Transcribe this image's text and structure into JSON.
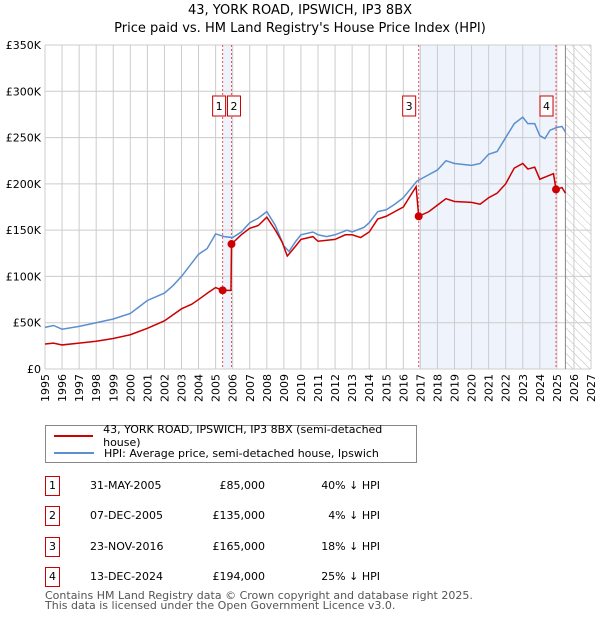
{
  "title": "43, YORK ROAD, IPSWICH, IP3 8BX",
  "subtitle": "Price paid vs. HM Land Registry's House Price Index (HPI)",
  "chart_data": {
    "type": "line",
    "title": "43, YORK ROAD, IPSWICH, IP3 8BX — Price paid vs. HM Land Registry's House Price Index (HPI)",
    "xlim": [
      1995,
      2027
    ],
    "ylim": [
      0,
      350000
    ],
    "yticks": [
      {
        "v": 0,
        "label": "£0"
      },
      {
        "v": 50000,
        "label": "£50K"
      },
      {
        "v": 100000,
        "label": "£100K"
      },
      {
        "v": 150000,
        "label": "£150K"
      },
      {
        "v": 200000,
        "label": "£200K"
      },
      {
        "v": 250000,
        "label": "£250K"
      },
      {
        "v": 300000,
        "label": "£300K"
      },
      {
        "v": 350000,
        "label": "£350K"
      }
    ],
    "xticks": [
      "1995",
      "1996",
      "1997",
      "1998",
      "1999",
      "2000",
      "2001",
      "2002",
      "2003",
      "2004",
      "2005",
      "2006",
      "2007",
      "2008",
      "2009",
      "2010",
      "2011",
      "2012",
      "2013",
      "2014",
      "2015",
      "2016",
      "2017",
      "2018",
      "2019",
      "2020",
      "2021",
      "2022",
      "2023",
      "2024",
      "2025",
      "2026",
      "2027"
    ],
    "series": [
      {
        "name": "43, YORK ROAD, IPSWICH, IP3 8BX (semi-detached house)",
        "color": "#cc0000",
        "points": [
          [
            1995,
            27000
          ],
          [
            1995.5,
            28000
          ],
          [
            1996,
            26000
          ],
          [
            1997,
            28000
          ],
          [
            1998,
            30000
          ],
          [
            1999,
            33000
          ],
          [
            2000,
            37000
          ],
          [
            2001,
            44000
          ],
          [
            2002,
            52000
          ],
          [
            2003,
            65000
          ],
          [
            2003.6,
            70000
          ],
          [
            2004,
            75000
          ],
          [
            2004.6,
            83000
          ],
          [
            2005,
            88000
          ],
          [
            2005.41,
            85000
          ],
          [
            2005.9,
            85000
          ],
          [
            2005.93,
            135000
          ],
          [
            2006.5,
            145000
          ],
          [
            2007,
            152000
          ],
          [
            2007.5,
            155000
          ],
          [
            2008,
            164000
          ],
          [
            2008.5,
            150000
          ],
          [
            2008.9,
            137000
          ],
          [
            2009.2,
            122000
          ],
          [
            2009.7,
            133000
          ],
          [
            2010,
            140000
          ],
          [
            2010.7,
            143000
          ],
          [
            2011,
            138000
          ],
          [
            2012,
            140000
          ],
          [
            2012.6,
            145000
          ],
          [
            2013,
            145000
          ],
          [
            2013.5,
            142000
          ],
          [
            2014,
            148000
          ],
          [
            2014.5,
            162000
          ],
          [
            2015,
            165000
          ],
          [
            2015.5,
            170000
          ],
          [
            2016,
            175000
          ],
          [
            2016.75,
            197000
          ],
          [
            2016.9,
            165000
          ],
          [
            2017.5,
            170000
          ],
          [
            2018,
            177000
          ],
          [
            2018.5,
            184000
          ],
          [
            2019,
            181000
          ],
          [
            2020,
            180000
          ],
          [
            2020.5,
            178000
          ],
          [
            2021,
            185000
          ],
          [
            2021.5,
            190000
          ],
          [
            2022,
            200000
          ],
          [
            2022.5,
            217000
          ],
          [
            2023,
            222000
          ],
          [
            2023.3,
            216000
          ],
          [
            2023.7,
            218000
          ],
          [
            2024,
            205000
          ],
          [
            2024.4,
            208000
          ],
          [
            2024.8,
            211000
          ],
          [
            2024.95,
            194000
          ],
          [
            2025.3,
            196000
          ],
          [
            2025.5,
            190000
          ]
        ]
      },
      {
        "name": "HPI: Average price, semi-detached house, Ipswich",
        "color": "#5b8fd0",
        "points": [
          [
            1995,
            45000
          ],
          [
            1995.5,
            47000
          ],
          [
            1996,
            43000
          ],
          [
            1997,
            46000
          ],
          [
            1998,
            50000
          ],
          [
            1999,
            54000
          ],
          [
            2000,
            60000
          ],
          [
            2000.5,
            67000
          ],
          [
            2001,
            74000
          ],
          [
            2002,
            82000
          ],
          [
            2002.5,
            90000
          ],
          [
            2003,
            100000
          ],
          [
            2003.5,
            112000
          ],
          [
            2004,
            124000
          ],
          [
            2004.5,
            130000
          ],
          [
            2005,
            146000
          ],
          [
            2005.5,
            143000
          ],
          [
            2006,
            142000
          ],
          [
            2006.5,
            148000
          ],
          [
            2007,
            158000
          ],
          [
            2007.5,
            163000
          ],
          [
            2008,
            170000
          ],
          [
            2008.5,
            155000
          ],
          [
            2009,
            133000
          ],
          [
            2009.3,
            127000
          ],
          [
            2009.7,
            138000
          ],
          [
            2010,
            145000
          ],
          [
            2010.7,
            148000
          ],
          [
            2011,
            145000
          ],
          [
            2011.5,
            143000
          ],
          [
            2012,
            145000
          ],
          [
            2012.7,
            150000
          ],
          [
            2013,
            148000
          ],
          [
            2013.7,
            153000
          ],
          [
            2014,
            158000
          ],
          [
            2014.5,
            170000
          ],
          [
            2015,
            172000
          ],
          [
            2015.5,
            178000
          ],
          [
            2016,
            185000
          ],
          [
            2016.8,
            203000
          ],
          [
            2017,
            205000
          ],
          [
            2017.5,
            210000
          ],
          [
            2018,
            215000
          ],
          [
            2018.5,
            225000
          ],
          [
            2019,
            222000
          ],
          [
            2020,
            220000
          ],
          [
            2020.5,
            222000
          ],
          [
            2021,
            232000
          ],
          [
            2021.5,
            235000
          ],
          [
            2022,
            250000
          ],
          [
            2022.5,
            265000
          ],
          [
            2023,
            272000
          ],
          [
            2023.3,
            265000
          ],
          [
            2023.7,
            265000
          ],
          [
            2024,
            252000
          ],
          [
            2024.3,
            249000
          ],
          [
            2024.6,
            258000
          ],
          [
            2025,
            261000
          ],
          [
            2025.3,
            262000
          ],
          [
            2025.5,
            256000
          ]
        ]
      }
    ],
    "sales": [
      {
        "id": "1",
        "x": 2005.41,
        "price": 85000
      },
      {
        "id": "2",
        "x": 2005.93,
        "price": 135000
      },
      {
        "id": "3",
        "x": 2016.9,
        "price": 165000
      },
      {
        "id": "4",
        "x": 2024.95,
        "price": 194000
      }
    ],
    "shaded_ranges": [
      [
        2005.41,
        2005.93
      ],
      [
        2016.9,
        2024.95
      ]
    ],
    "forecast_hatch_from": 2025.5,
    "grid": true,
    "legend_position": "below"
  },
  "legend": {
    "items": [
      "43, YORK ROAD, IPSWICH, IP3 8BX (semi-detached house)",
      "HPI: Average price, semi-detached house, Ipswich"
    ]
  },
  "table": [
    {
      "num": "1",
      "date": "31-MAY-2005",
      "price": "£85,000",
      "hpi": "40% ↓ HPI"
    },
    {
      "num": "2",
      "date": "07-DEC-2005",
      "price": "£135,000",
      "hpi": "4% ↓ HPI"
    },
    {
      "num": "3",
      "date": "23-NOV-2016",
      "price": "£165,000",
      "hpi": "18% ↓ HPI"
    },
    {
      "num": "4",
      "date": "13-DEC-2024",
      "price": "£194,000",
      "hpi": "25% ↓ HPI"
    }
  ],
  "footer": [
    "Contains HM Land Registry data © Crown copyright and database right 2025.",
    "This data is licensed under the Open Government Licence v3.0."
  ]
}
